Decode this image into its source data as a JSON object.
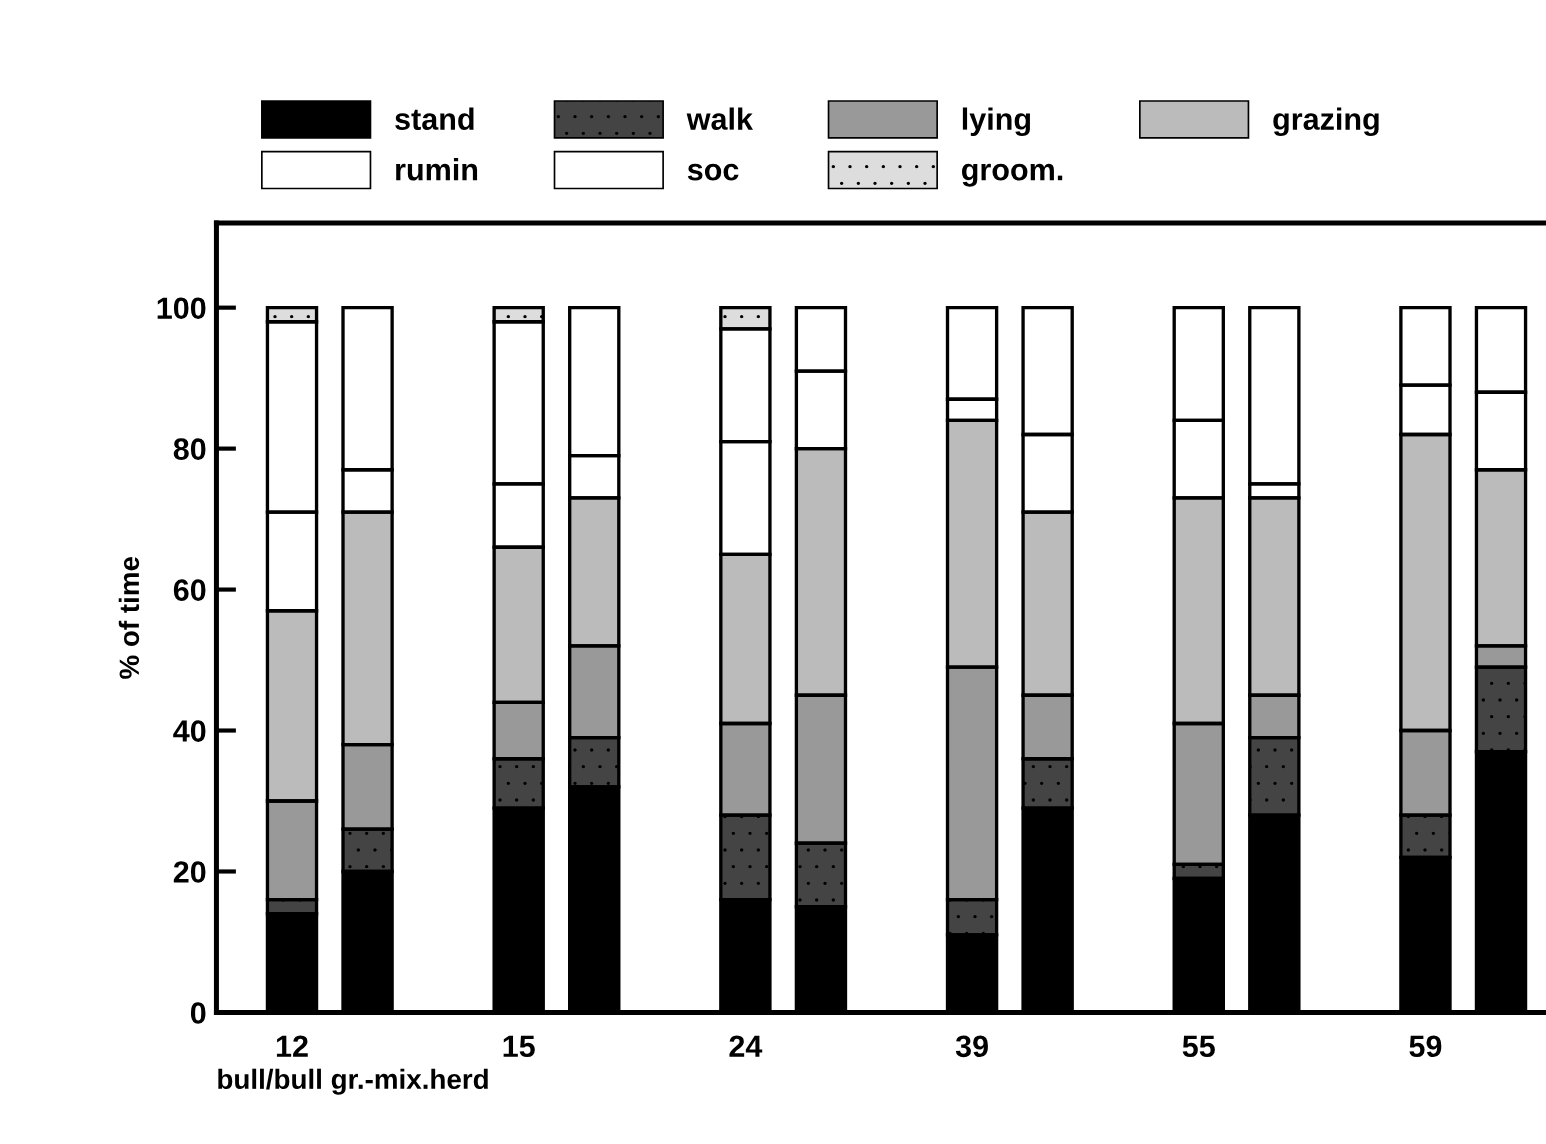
{
  "chart_data": {
    "type": "bar",
    "stacked": true,
    "xlabel": "bull/bull gr.-mix.herd",
    "ylabel": "% of time",
    "categories": [
      "12",
      null,
      null,
      "15",
      null,
      null,
      "24",
      null,
      null,
      "39",
      null,
      null,
      "55",
      null,
      null,
      "59",
      null
    ],
    "series": [
      {
        "name": "stand",
        "color": "#000000",
        "values": [
          14,
          20,
          null,
          29,
          32,
          null,
          16,
          15,
          null,
          11,
          29,
          null,
          19,
          28,
          null,
          22,
          37
        ]
      },
      {
        "name": "walk",
        "color": "#444444",
        "values": [
          2,
          6,
          null,
          7,
          7,
          null,
          12,
          9,
          null,
          5,
          7,
          null,
          2,
          11,
          null,
          6,
          12
        ]
      },
      {
        "name": "lying",
        "color": "#999999",
        "values": [
          14,
          12,
          null,
          8,
          13,
          null,
          13,
          21,
          null,
          33,
          9,
          null,
          20,
          6,
          null,
          12,
          3
        ]
      },
      {
        "name": "grazing",
        "color": "#bbbbbb",
        "values": [
          27,
          33,
          null,
          22,
          21,
          null,
          24,
          35,
          null,
          35,
          26,
          null,
          32,
          28,
          null,
          42,
          25
        ]
      },
      {
        "name": "rumin",
        "color": "#ffffff",
        "values": [
          14,
          6,
          null,
          9,
          6,
          null,
          16,
          11,
          null,
          3,
          11,
          null,
          11,
          2,
          null,
          7,
          11
        ]
      },
      {
        "name": "soc",
        "color": "#ffffff",
        "values": [
          27,
          23,
          null,
          23,
          21,
          null,
          16,
          9,
          null,
          13,
          18,
          null,
          16,
          25,
          null,
          11,
          12
        ]
      },
      {
        "name": "groom.",
        "color": "#dddddd",
        "values": [
          2,
          0,
          null,
          2,
          0,
          null,
          3,
          0,
          null,
          0,
          0,
          null,
          0,
          0,
          null,
          0,
          0
        ]
      }
    ],
    "ylim": [
      0,
      112
    ],
    "yticks": [
      0,
      20,
      40,
      60,
      80,
      100
    ],
    "grid": false,
    "legend": "top"
  }
}
